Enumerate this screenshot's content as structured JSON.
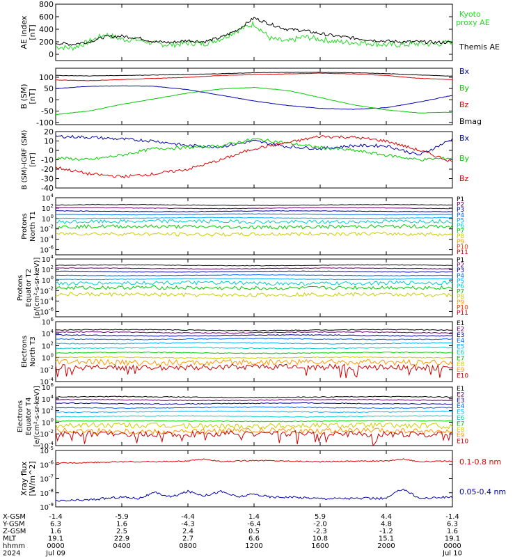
{
  "colors": {
    "black": "#000000",
    "red": "#dd0000",
    "green": "#00cc00",
    "blue": "#0000aa",
    "proxy": "#22dd22",
    "channels_protons": [
      "#000000",
      "#660066",
      "#000099",
      "#0066ff",
      "#00aaff",
      "#00cccc",
      "#00cc00",
      "#cccc00",
      "#ff9900",
      "#ff3300",
      "#cc0000"
    ],
    "channels_electrons": [
      "#000000",
      "#660066",
      "#000099",
      "#0066ff",
      "#00aaff",
      "#00cccc",
      "#00cc00",
      "#cccc00",
      "#ff9900",
      "#cc0000"
    ]
  },
  "time_axis": {
    "ticks": [
      0,
      4,
      8,
      12,
      16,
      20,
      24
    ],
    "rows": [
      {
        "label": "X-GSM",
        "values": [
          "-1.4",
          "-5.9",
          "-4.4",
          "1.4",
          "5.9",
          "4.4",
          "-1.4"
        ]
      },
      {
        "label": "Y-GSM",
        "values": [
          "6.3",
          "1.6",
          "-4.3",
          "-6.4",
          "-2.0",
          "4.8",
          "6.3"
        ]
      },
      {
        "label": "Z-GSM",
        "values": [
          "1.6",
          "2.5",
          "2.4",
          "0.5",
          "-2.3",
          "-1.2",
          "1.6"
        ]
      },
      {
        "label": "MLT",
        "values": [
          "19.1",
          "22.9",
          "2.7",
          "6.6",
          "10.8",
          "15.1",
          "19.1"
        ]
      },
      {
        "label": "hhmm",
        "values": [
          "0000",
          "0400",
          "0800",
          "1200",
          "1600",
          "2000",
          "0000"
        ]
      },
      {
        "label": "2024",
        "values": [
          "Jul 09",
          "",
          "",
          "",
          "",
          "",
          "Jul 10"
        ]
      }
    ]
  },
  "chart_data": [
    {
      "type": "line",
      "ylabel": "AE index [nT]",
      "ylim": [
        -100,
        800
      ],
      "yticks": [
        "800",
        "600",
        "400",
        "200",
        "0"
      ],
      "yticks_values": [
        800,
        600,
        400,
        200,
        0
      ],
      "series": [
        {
          "name": "Kyoto proxy AE",
          "color": "#22dd22",
          "x": [
            0,
            1,
            2,
            3,
            4,
            5,
            6,
            7,
            8,
            9,
            10,
            11,
            12,
            13,
            14,
            15,
            16,
            17,
            18,
            19,
            20,
            21,
            22,
            23,
            24
          ],
          "values": [
            120,
            100,
            200,
            320,
            240,
            230,
            170,
            150,
            180,
            170,
            250,
            380,
            490,
            250,
            200,
            280,
            240,
            200,
            190,
            180,
            150,
            150,
            170,
            160,
            200
          ]
        },
        {
          "name": "Themis AE",
          "color": "#000000",
          "x": [
            0,
            1,
            2,
            3,
            4,
            5,
            6,
            7,
            8,
            9,
            10,
            11,
            12,
            13,
            14,
            15,
            16,
            17,
            18,
            19,
            20,
            21,
            22,
            23,
            24
          ],
          "values": [
            180,
            160,
            200,
            280,
            290,
            260,
            200,
            190,
            220,
            200,
            270,
            390,
            580,
            480,
            400,
            380,
            330,
            290,
            260,
            230,
            210,
            200,
            200,
            190,
            190
          ]
        }
      ]
    },
    {
      "type": "line",
      "ylabel": "B (SM) [nT]",
      "ylim": [
        -110,
        140
      ],
      "yticks": [
        "100",
        "50",
        "0",
        "-50",
        "-100"
      ],
      "yticks_values": [
        100,
        50,
        0,
        -50,
        -100
      ],
      "series": [
        {
          "name": "Bx",
          "color": "#0000aa",
          "x": [
            0,
            2,
            4,
            6,
            8,
            10,
            12,
            14,
            16,
            18,
            20,
            22,
            24
          ],
          "values": [
            50,
            60,
            62,
            60,
            45,
            20,
            -5,
            -25,
            -38,
            -42,
            -35,
            -10,
            20
          ]
        },
        {
          "name": "By",
          "color": "#00cc00",
          "x": [
            0,
            2,
            4,
            6,
            8,
            10,
            12,
            14,
            16,
            18,
            20,
            22,
            24
          ],
          "values": [
            -65,
            -50,
            -20,
            5,
            30,
            48,
            55,
            42,
            10,
            -22,
            -45,
            -58,
            -55
          ]
        },
        {
          "name": "Bz",
          "color": "#dd0000",
          "x": [
            0,
            2,
            4,
            6,
            8,
            10,
            12,
            14,
            16,
            18,
            20,
            22,
            24
          ],
          "values": [
            88,
            85,
            90,
            95,
            100,
            108,
            112,
            115,
            118,
            115,
            108,
            95,
            90
          ]
        },
        {
          "name": "Bmag",
          "color": "#000000",
          "x": [
            0,
            2,
            4,
            6,
            8,
            10,
            12,
            14,
            16,
            18,
            20,
            22,
            24
          ],
          "values": [
            108,
            106,
            108,
            110,
            112,
            116,
            120,
            122,
            122,
            120,
            116,
            110,
            105
          ]
        }
      ]
    },
    {
      "type": "line",
      "ylabel": "B (SM)-IGRF (SM) [nT]",
      "ylim": [
        -40,
        20
      ],
      "yticks": [
        "20",
        "10",
        "0",
        "-10",
        "-20",
        "-30",
        "-40"
      ],
      "yticks_values": [
        20,
        10,
        0,
        -10,
        -20,
        -30,
        -40
      ],
      "series": [
        {
          "name": "Bx",
          "color": "#0000aa",
          "x": [
            0,
            2,
            4,
            6,
            8,
            10,
            12,
            14,
            16,
            18,
            20,
            22,
            24
          ],
          "values": [
            15,
            14,
            12,
            10,
            5,
            4,
            10,
            4,
            2,
            5,
            5,
            -5,
            12
          ]
        },
        {
          "name": "By",
          "color": "#00cc00",
          "x": [
            0,
            2,
            4,
            6,
            8,
            10,
            12,
            14,
            16,
            18,
            20,
            22,
            24
          ],
          "values": [
            -8,
            -10,
            -5,
            2,
            3,
            5,
            12,
            8,
            3,
            0,
            -5,
            -10,
            -8
          ]
        },
        {
          "name": "Bz",
          "color": "#dd0000",
          "x": [
            0,
            2,
            4,
            6,
            8,
            10,
            12,
            14,
            16,
            18,
            20,
            22,
            24
          ],
          "values": [
            -18,
            -25,
            -28,
            -25,
            -20,
            -10,
            2,
            8,
            15,
            14,
            10,
            0,
            -12
          ]
        }
      ]
    },
    {
      "type": "line",
      "ylabel": "Protons North T1",
      "ylog": true,
      "ylim_exp": [
        -7,
        4
      ],
      "yticks": [
        "10^4",
        "10^2",
        "10^0",
        "10^-2",
        "10^-4",
        "10^-6"
      ],
      "yticks_exp": [
        4,
        2,
        0,
        -2,
        -4,
        -6
      ],
      "channels": [
        "P1",
        "P2",
        "P3",
        "P4",
        "P5",
        "P6",
        "P7",
        "P8",
        "P9",
        "P10",
        "P11"
      ],
      "levels_exp": [
        2.6,
        2.0,
        1.4,
        0.8,
        0.1,
        -0.6,
        -1.6,
        -3.0,
        -7,
        -7,
        -7
      ]
    },
    {
      "type": "line",
      "ylabel": "Protons Equator T2 [p/(cm²-s-sr-keV)]",
      "ylog": true,
      "ylim_exp": [
        -7,
        4
      ],
      "yticks": [
        "10^4",
        "10^2",
        "10^0",
        "10^-2",
        "10^-4",
        "10^-6"
      ],
      "yticks_exp": [
        4,
        2,
        0,
        -2,
        -4,
        -6
      ],
      "channels": [
        "P1",
        "P2",
        "P3",
        "P4",
        "P5",
        "P6",
        "P7",
        "P8",
        "P9",
        "P10",
        "P11"
      ],
      "levels_exp": [
        2.8,
        2.2,
        1.6,
        0.9,
        0.2,
        -0.6,
        -1.5,
        -2.8,
        -7,
        -7,
        -7
      ]
    },
    {
      "type": "line",
      "ylabel": "Electrons North T3",
      "ylog": true,
      "ylim_exp": [
        -4,
        6
      ],
      "yticks": [
        "10^6",
        "10^4",
        "10^2",
        "10^0",
        "10^-2",
        "10^-4"
      ],
      "yticks_exp": [
        6,
        4,
        2,
        0,
        -2,
        -4
      ],
      "channels": [
        "E1",
        "E2",
        "E3",
        "E4",
        "E5",
        "E6",
        "E7",
        "E8",
        "E9",
        "E10"
      ],
      "levels_exp": [
        4.6,
        4.2,
        3.7,
        3.1,
        2.4,
        1.6,
        0.8,
        0.0,
        -0.8,
        -1.6
      ]
    },
    {
      "type": "line",
      "ylabel": "Electrons Equator T4 [e/(cm²-s-sr-keV)]",
      "ylog": true,
      "ylim_exp": [
        -4,
        6
      ],
      "yticks": [
        "10^6",
        "10^4",
        "10^2",
        "10^0",
        "10^-2",
        "10^-4"
      ],
      "yticks_exp": [
        6,
        4,
        2,
        0,
        -2,
        -4
      ],
      "channels": [
        "E1",
        "E2",
        "E3",
        "E4",
        "E5",
        "E6",
        "E7",
        "E8",
        "E9",
        "E10"
      ],
      "levels_exp": [
        4.3,
        3.8,
        3.2,
        2.5,
        1.8,
        1.0,
        0.2,
        -0.6,
        -1.5,
        -2.0
      ]
    },
    {
      "type": "line",
      "ylabel": "Xray flux [W/m^2]",
      "ylog": true,
      "ylim_exp": [
        -9,
        -5
      ],
      "yticks": [
        "10^-5",
        "10^-6",
        "10^-7",
        "10^-8",
        "10^-9"
      ],
      "yticks_exp": [
        -5,
        -6,
        -7,
        -8,
        -9
      ],
      "series": [
        {
          "name": "0.1-0.8 nm",
          "color": "#dd0000",
          "x": [
            0,
            2,
            4,
            6,
            8,
            9,
            10,
            12,
            14,
            16,
            18,
            20,
            21,
            22,
            24
          ],
          "values_exp": [
            -5.9,
            -5.85,
            -5.8,
            -5.8,
            -5.75,
            -5.6,
            -5.8,
            -5.7,
            -5.75,
            -5.8,
            -5.75,
            -5.75,
            -5.6,
            -5.8,
            -5.75
          ]
        },
        {
          "name": "0.05-0.4 nm",
          "color": "#0000aa",
          "x": [
            0,
            2,
            4,
            5,
            6,
            7,
            8,
            9,
            10,
            11,
            12,
            13,
            14,
            16,
            18,
            20,
            21,
            22,
            24
          ],
          "values_exp": [
            -8.6,
            -8.5,
            -8.3,
            -8.4,
            -8.0,
            -8.3,
            -7.9,
            -8.2,
            -7.9,
            -8.3,
            -8.1,
            -8.3,
            -8.3,
            -8.4,
            -8.4,
            -8.4,
            -7.7,
            -8.4,
            -8.3
          ]
        }
      ]
    }
  ]
}
